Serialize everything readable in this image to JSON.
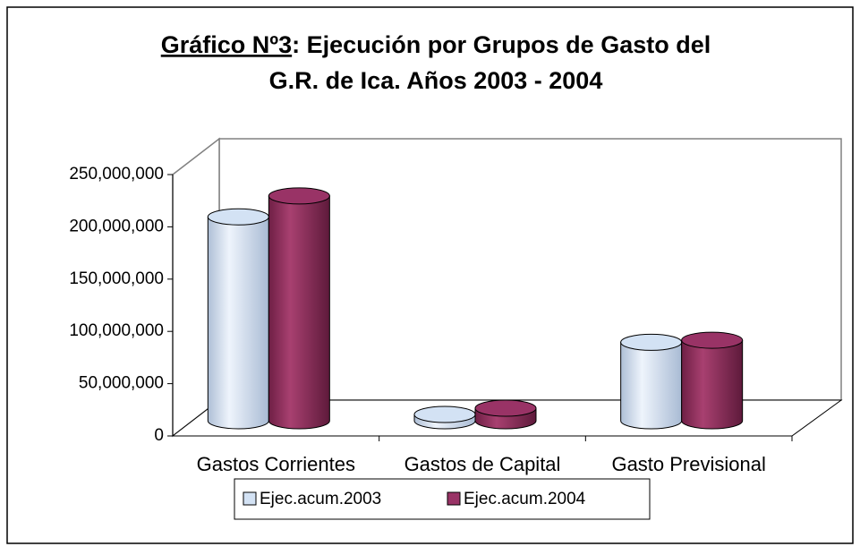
{
  "chart_data": {
    "type": "bar3d",
    "title_prefix": "Gráfico Nº3",
    "title": [
      ": Ejecución por Grupos de Gasto del",
      "G.R. de Ica. Años 2003 - 2004"
    ],
    "categories": [
      "Gastos Corrientes",
      "Gastos de Capital",
      "Gasto Previsional"
    ],
    "series": [
      {
        "name": "Ejec.acum.2003",
        "color": "#d3e2f4",
        "values": [
          195000000,
          6000000,
          75000000
        ]
      },
      {
        "name": "Ejec.acum.2004",
        "color": "#993366",
        "values": [
          215000000,
          12000000,
          77000000
        ]
      }
    ],
    "ylim": [
      0,
      250000000
    ],
    "yticks": [
      0,
      {
        "value": 50000000,
        "label": "50,000,000"
      },
      {
        "value": 100000000,
        "label": "100,000,000"
      },
      {
        "value": 150000000,
        "label": "150,000,000"
      },
      {
        "value": 200000000,
        "label": "200,000,000"
      },
      {
        "value": 250000000,
        "label": "250,000,000"
      }
    ],
    "grid": false,
    "legend": "bottom"
  }
}
